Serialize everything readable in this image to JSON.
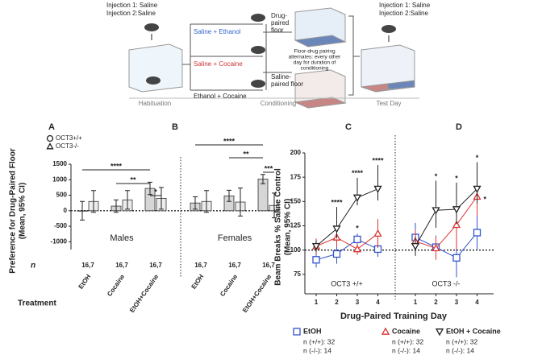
{
  "diagram": {
    "injection_start": [
      "Injection 1: Saline",
      "Injection 2:Saline"
    ],
    "arms": [
      "Saline + Ethanol",
      "Saline + Cocaine",
      "Ethanol + Cocaine"
    ],
    "drug_floor": [
      "Drug-",
      "paired",
      "floor"
    ],
    "note": [
      "Floor-drug pairing",
      "alternates: every other",
      "day for duration of",
      "conditioning"
    ],
    "saline_floor": [
      "Saline-",
      "paired floor"
    ],
    "injection_test": [
      "Injection 1: Saline",
      "Injection 2:Saline"
    ],
    "stages": [
      "Habituation",
      "Conditioning",
      "Test Day"
    ]
  },
  "chart_data": [
    {
      "type": "bar",
      "panels": [
        "A",
        "B"
      ],
      "ylabel": [
        "Preference for Drug-Paired Floor",
        "(Mean, 95% CI)"
      ],
      "ylim": [
        -1250,
        1500
      ],
      "yticks": [
        1500,
        1000,
        500,
        0,
        -500,
        -1000
      ],
      "facets": [
        "Males",
        "Females"
      ],
      "categories": [
        "EtOH",
        "Cocaine",
        "EtOH+Cocaine",
        "EtOH",
        "Cocaine",
        "EtOH+Cocaine"
      ],
      "series": [
        {
          "name": "OCT3+/+",
          "marker": "circle",
          "values": [
            0,
            150,
            720,
            250,
            480,
            1020
          ],
          "errors": [
            300,
            200,
            200,
            200,
            180,
            150
          ]
        },
        {
          "name": "OCT3-/-",
          "marker": "triangle",
          "values": [
            300,
            350,
            400,
            300,
            280,
            170
          ],
          "errors": [
            350,
            300,
            350,
            350,
            450,
            400
          ]
        }
      ],
      "n_label": "n",
      "n": [
        "16,7",
        "16,7",
        "16,7",
        "16,7",
        "16,7",
        "16,7"
      ],
      "treatment_label": "Treatment",
      "significance": [
        {
          "label": "****",
          "between": [
            0,
            2
          ]
        },
        {
          "label": "**",
          "between": [
            1,
            2
          ]
        },
        {
          "label": "*",
          "between": [
            2
          ]
        },
        {
          "label": "****",
          "between": [
            3,
            5
          ]
        },
        {
          "label": "**",
          "between": [
            4,
            5
          ]
        },
        {
          "label": "***",
          "between": [
            5
          ]
        }
      ]
    },
    {
      "type": "line",
      "panels": [
        "C",
        "D"
      ],
      "ylabel": [
        "Beam Breaks % Saline Control",
        "(Mean, 95% CI)"
      ],
      "xlabel": "Drug-Paired Training Day",
      "ylim": [
        55,
        200
      ],
      "yticks": [
        75,
        100,
        125,
        150,
        175,
        200
      ],
      "reference": 100,
      "categories": [
        "1",
        "2",
        "3",
        "4"
      ],
      "facets": [
        "OCT3 +/+",
        "OCT3 -/-"
      ],
      "series": [
        {
          "name": "EtOH",
          "color": "#3355cc",
          "marker": "square",
          "n": [
            "n (+/+): 32",
            "n (-/-): 14"
          ],
          "values": [
            [
              90,
              96,
              111,
              101
            ],
            [
              113,
              103,
              92,
              118
            ]
          ],
          "errors": [
            [
              8,
              10,
              6,
              8
            ],
            [
              15,
              12,
              20,
              18
            ]
          ]
        },
        {
          "name": "Cocaine",
          "color": "#dd3333",
          "marker": "triangle",
          "n": [
            "n (+/+): 32",
            "n (-/-): 14"
          ],
          "values": [
            [
              104,
              113,
              101,
              117
            ],
            [
              109,
              102,
              126,
              155
            ]
          ],
          "errors": [
            [
              8,
              10,
              6,
              15
            ],
            [
              12,
              12,
              25,
              20
            ]
          ]
        },
        {
          "name": "EtOH + Cocaine",
          "color": "#222222",
          "marker": "triangle-down",
          "n": [
            "n (+/+): 32",
            "n (-/-): 14"
          ],
          "values": [
            [
              104,
              122,
              154,
              163
            ],
            [
              104,
              141,
              142,
              163
            ]
          ],
          "errors": [
            [
              6,
              10,
              8,
              12
            ],
            [
              10,
              18,
              15,
              15
            ]
          ]
        }
      ],
      "significance": [
        {
          "label": "****",
          "facet": 0,
          "day": 1,
          "series": 2
        },
        {
          "label": "****",
          "facet": 0,
          "day": 2,
          "series": 2
        },
        {
          "label": "*",
          "facet": 0,
          "day": 2,
          "series": 0
        },
        {
          "label": "****",
          "facet": 0,
          "day": 3,
          "series": 2
        },
        {
          "label": "*",
          "facet": 1,
          "day": 1,
          "series": 2
        },
        {
          "label": "*",
          "facet": 1,
          "day": 2,
          "series": 2
        },
        {
          "label": "*",
          "facet": 1,
          "day": 3,
          "series": 2
        },
        {
          "label": "*",
          "facet": 1,
          "day": 3,
          "series": 1
        }
      ]
    }
  ]
}
